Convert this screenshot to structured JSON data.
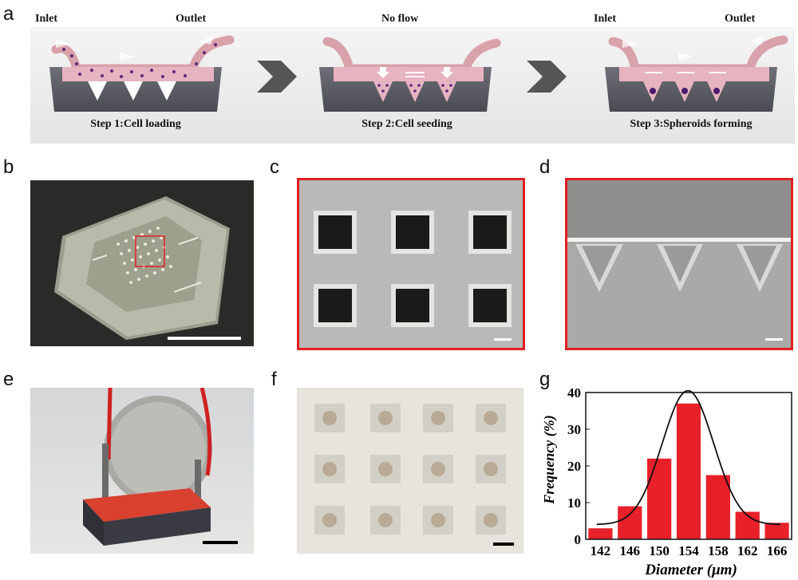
{
  "panel_labels": {
    "a": "a",
    "b": "b",
    "c": "c",
    "d": "d",
    "e": "e",
    "f": "f",
    "g": "g"
  },
  "schematic": {
    "step1": {
      "inlet": "Inlet",
      "outlet": "Outlet",
      "caption": "Step 1:Cell loading"
    },
    "step2": {
      "top": "No flow",
      "caption": "Step 2:Cell seeding"
    },
    "step3": {
      "inlet": "Inlet",
      "outlet": "Outlet",
      "caption": "Step 3:Spheroids forming"
    }
  },
  "colors": {
    "chip_fill": "#e6b4c0",
    "tube": "#d9a1aa",
    "block": "#5f6068",
    "red": "#e02020",
    "bar": "#e8202a"
  },
  "chart_data": {
    "type": "bar",
    "categories": [
      142,
      146,
      150,
      154,
      158,
      162,
      166
    ],
    "values": [
      3,
      9,
      22,
      37,
      17.5,
      7.5,
      4.5
    ],
    "fit_curve": true,
    "xlabel": "Diameter (μm)",
    "ylabel": "Frequency (%)",
    "ylim": [
      0,
      40
    ],
    "yticks": [
      0,
      10,
      20,
      30,
      40
    ],
    "xticks": [
      142,
      146,
      150,
      154,
      158,
      162,
      166
    ]
  }
}
